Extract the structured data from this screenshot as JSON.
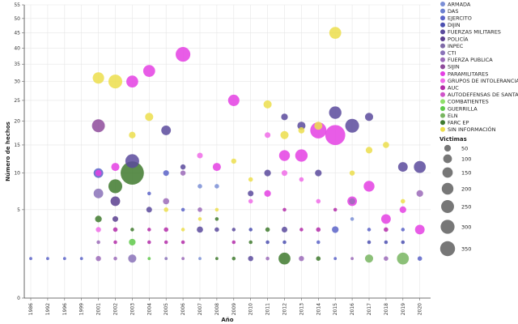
{
  "chart_data": {
    "type": "scatter",
    "xlabel": "Año",
    "ylabel": "Número de hechos",
    "x_categories": [
      "1986",
      "1992",
      "1996",
      "1999",
      "2001",
      "2002",
      "2003",
      "2004",
      "2005",
      "2006",
      "2007",
      "2008",
      "2009",
      "2010",
      "2011",
      "2012",
      "2013",
      "2014",
      "2015",
      "2016",
      "2017",
      "2018",
      "2019",
      "2020"
    ],
    "y_ticks": [
      0,
      5,
      10,
      15,
      20,
      25,
      30,
      35,
      40,
      45,
      50,
      55
    ],
    "ylim": [
      0,
      55
    ],
    "y_scale": "sqrt",
    "grid": true,
    "legend_position": "right",
    "series": [
      {
        "name": "ARMADA",
        "color": "#7b8fd6"
      },
      {
        "name": "DAS",
        "color": "#6b7fd0"
      },
      {
        "name": "EJERCITO",
        "color": "#5a63c8"
      },
      {
        "name": "DIJIN",
        "color": "#4b4fb0"
      },
      {
        "name": "FUERZAS MILITARES",
        "color": "#5a4a9c"
      },
      {
        "name": "POLICÍA",
        "color": "#5b3f8f"
      },
      {
        "name": "INPEC",
        "color": "#7f6aa8"
      },
      {
        "name": "CTI",
        "color": "#8a72b8"
      },
      {
        "name": "FUERZA PUBLICA",
        "color": "#9b6ab8"
      },
      {
        "name": "SIJIN",
        "color": "#8e4b9b"
      },
      {
        "name": "PARAMILITARES",
        "color": "#e43fe3"
      },
      {
        "name": "GRUPOS DE INTOLERANCIA",
        "color": "#f06ce8"
      },
      {
        "name": "AUC",
        "color": "#b32ca8"
      },
      {
        "name": "AUTODEFENSAS DE SANTANDER",
        "color": "#cf55c9"
      },
      {
        "name": "COMBATIENTES",
        "color": "#8fe06a"
      },
      {
        "name": "GUERRILLA",
        "color": "#5fc94a"
      },
      {
        "name": "ELN",
        "color": "#78b560"
      },
      {
        "name": "FARC EP",
        "color": "#3f7a2e"
      },
      {
        "name": "SIN INFORMACIÓN",
        "color": "#ecde4c"
      }
    ],
    "size_legend": {
      "title": "Victimas",
      "values": [
        50,
        100,
        150,
        200,
        250,
        300,
        350
      ]
    },
    "points": [
      {
        "x": "1986",
        "y": 1,
        "s": 1,
        "series": "EJERCITO"
      },
      {
        "x": "1992",
        "y": 1,
        "s": 1,
        "series": "EJERCITO"
      },
      {
        "x": "1996",
        "y": 1,
        "s": 1,
        "series": "EJERCITO"
      },
      {
        "x": "1999",
        "y": 1,
        "s": 1,
        "series": "EJERCITO"
      },
      {
        "x": "2001",
        "y": 31,
        "s": 45,
        "series": "SIN INFORMACIÓN"
      },
      {
        "x": "2001",
        "y": 19,
        "s": 60,
        "series": "SIJIN"
      },
      {
        "x": "2001",
        "y": 10,
        "s": 30,
        "series": "EJERCITO"
      },
      {
        "x": "2001",
        "y": 10,
        "s": 10,
        "series": "PARAMILITARES"
      },
      {
        "x": "2001",
        "y": 7,
        "s": 30,
        "series": "CTI"
      },
      {
        "x": "2001",
        "y": 4,
        "s": 12,
        "series": "FARC EP"
      },
      {
        "x": "2001",
        "y": 3,
        "s": 6,
        "series": "GRUPOS DE INTOLERANCIA"
      },
      {
        "x": "2001",
        "y": 2,
        "s": 2,
        "series": "FUERZA PUBLICA"
      },
      {
        "x": "2001",
        "y": 1,
        "s": 6,
        "series": "FUERZA PUBLICA"
      },
      {
        "x": "2002",
        "y": 30,
        "s": 70,
        "series": "SIN INFORMACIÓN"
      },
      {
        "x": "2002",
        "y": 11,
        "s": 20,
        "series": "PARAMILITARES"
      },
      {
        "x": "2002",
        "y": 8,
        "s": 70,
        "series": "FARC EP"
      },
      {
        "x": "2002",
        "y": 6,
        "s": 30,
        "series": "POLICÍA"
      },
      {
        "x": "2002",
        "y": 4,
        "s": 8,
        "series": "POLICÍA"
      },
      {
        "x": "2002",
        "y": 3,
        "s": 4,
        "series": "AUC"
      },
      {
        "x": "2002",
        "y": 2,
        "s": 2,
        "series": "AUC"
      },
      {
        "x": "2002",
        "y": 1,
        "s": 2,
        "series": "FUERZA PUBLICA"
      },
      {
        "x": "2003",
        "y": 30,
        "s": 50,
        "series": "PARAMILITARES"
      },
      {
        "x": "2003",
        "y": 17,
        "s": 12,
        "series": "SIN INFORMACIÓN"
      },
      {
        "x": "2003",
        "y": 12,
        "s": 70,
        "series": "FUERZAS MILITARES"
      },
      {
        "x": "2003",
        "y": 10,
        "s": 220,
        "series": "FARC EP"
      },
      {
        "x": "2003",
        "y": 3,
        "s": 2,
        "series": "FARC EP"
      },
      {
        "x": "2003",
        "y": 2,
        "s": 12,
        "series": "GUERRILLA"
      },
      {
        "x": "2003",
        "y": 1,
        "s": 20,
        "series": "CTI"
      },
      {
        "x": "2004",
        "y": 33,
        "s": 50,
        "series": "PARAMILITARES"
      },
      {
        "x": "2004",
        "y": 21,
        "s": 20,
        "series": "SIN INFORMACIÓN"
      },
      {
        "x": "2004",
        "y": 7,
        "s": 2,
        "series": "EJERCITO"
      },
      {
        "x": "2004",
        "y": 5,
        "s": 8,
        "series": "FUERZAS MILITARES"
      },
      {
        "x": "2004",
        "y": 3,
        "s": 2,
        "series": "AUC"
      },
      {
        "x": "2004",
        "y": 2,
        "s": 2,
        "series": "AUC"
      },
      {
        "x": "2004",
        "y": 1,
        "s": 1,
        "series": "GUERRILLA"
      },
      {
        "x": "2005",
        "y": 18,
        "s": 30,
        "series": "FUERZAS MILITARES"
      },
      {
        "x": "2005",
        "y": 10,
        "s": 8,
        "series": "EJERCITO"
      },
      {
        "x": "2005",
        "y": 6,
        "s": 10,
        "series": "FUERZA PUBLICA"
      },
      {
        "x": "2005",
        "y": 5,
        "s": 4,
        "series": "SIN INFORMACIÓN"
      },
      {
        "x": "2005",
        "y": 3,
        "s": 4,
        "series": "AUC"
      },
      {
        "x": "2005",
        "y": 2,
        "s": 2,
        "series": "AUC"
      },
      {
        "x": "2005",
        "y": 1,
        "s": 1,
        "series": "CTI"
      },
      {
        "x": "2006",
        "y": 38,
        "s": 80,
        "series": "PARAMILITARES"
      },
      {
        "x": "2006",
        "y": 11,
        "s": 6,
        "series": "FUERZAS MILITARES"
      },
      {
        "x": "2006",
        "y": 10,
        "s": 6,
        "series": "FUERZA PUBLICA"
      },
      {
        "x": "2006",
        "y": 5,
        "s": 2,
        "series": "EJERCITO"
      },
      {
        "x": "2006",
        "y": 3,
        "s": 2,
        "series": "SIN INFORMACIÓN"
      },
      {
        "x": "2006",
        "y": 2,
        "s": 2,
        "series": "AUC"
      },
      {
        "x": "2006",
        "y": 1,
        "s": 1,
        "series": "FUERZA PUBLICA"
      },
      {
        "x": "2007",
        "y": 13,
        "s": 8,
        "series": "GRUPOS DE INTOLERANCIA"
      },
      {
        "x": "2007",
        "y": 8,
        "s": 4,
        "series": "ARMADA"
      },
      {
        "x": "2007",
        "y": 5,
        "s": 4,
        "series": "FUERZA PUBLICA"
      },
      {
        "x": "2007",
        "y": 4,
        "s": 2,
        "series": "SIN INFORMACIÓN"
      },
      {
        "x": "2007",
        "y": 3,
        "s": 10,
        "series": "FUERZAS MILITARES"
      },
      {
        "x": "2007",
        "y": 1,
        "s": 1,
        "series": "ARMADA"
      },
      {
        "x": "2008",
        "y": 11,
        "s": 20,
        "series": "PARAMILITARES"
      },
      {
        "x": "2008",
        "y": 8,
        "s": 4,
        "series": "ARMADA"
      },
      {
        "x": "2008",
        "y": 5,
        "s": 2,
        "series": "SIN INFORMACIÓN"
      },
      {
        "x": "2008",
        "y": 4,
        "s": 2,
        "series": "FARC EP"
      },
      {
        "x": "2008",
        "y": 3,
        "s": 4,
        "series": "FUERZAS MILITARES"
      },
      {
        "x": "2008",
        "y": 1,
        "s": 1,
        "series": "FARC EP"
      },
      {
        "x": "2009",
        "y": 25,
        "s": 45,
        "series": "PARAMILITARES"
      },
      {
        "x": "2009",
        "y": 12,
        "s": 6,
        "series": "SIN INFORMACIÓN"
      },
      {
        "x": "2009",
        "y": 3,
        "s": 2,
        "series": "FUERZAS MILITARES"
      },
      {
        "x": "2009",
        "y": 2,
        "s": 2,
        "series": "AUC"
      },
      {
        "x": "2009",
        "y": 1,
        "s": 2,
        "series": "FARC EP"
      },
      {
        "x": "2010",
        "y": 9,
        "s": 4,
        "series": "SIN INFORMACIÓN"
      },
      {
        "x": "2010",
        "y": 7,
        "s": 8,
        "series": "FUERZAS MILITARES"
      },
      {
        "x": "2010",
        "y": 6,
        "s": 4,
        "series": "GRUPOS DE INTOLERANCIA"
      },
      {
        "x": "2010",
        "y": 3,
        "s": 2,
        "series": "DIJIN"
      },
      {
        "x": "2010",
        "y": 2,
        "s": 2,
        "series": "FARC EP"
      },
      {
        "x": "2010",
        "y": 1,
        "s": 6,
        "series": "FUERZAS MILITARES"
      },
      {
        "x": "2011",
        "y": 24,
        "s": 20,
        "series": "SIN INFORMACIÓN"
      },
      {
        "x": "2011",
        "y": 17,
        "s": 8,
        "series": "GRUPOS DE INTOLERANCIA"
      },
      {
        "x": "2011",
        "y": 10,
        "s": 12,
        "series": "FUERZAS MILITARES"
      },
      {
        "x": "2011",
        "y": 7,
        "s": 12,
        "series": "PARAMILITARES"
      },
      {
        "x": "2011",
        "y": 3,
        "s": 4,
        "series": "FARC EP"
      },
      {
        "x": "2011",
        "y": 2,
        "s": 2,
        "series": "DIJIN"
      },
      {
        "x": "2011",
        "y": 1,
        "s": 2,
        "series": "FUERZA PUBLICA"
      },
      {
        "x": "2012",
        "y": 21,
        "s": 12,
        "series": "FUERZAS MILITARES"
      },
      {
        "x": "2012",
        "y": 17,
        "s": 20,
        "series": "SIN INFORMACIÓN"
      },
      {
        "x": "2012",
        "y": 13,
        "s": 40,
        "series": "PARAMILITARES"
      },
      {
        "x": "2012",
        "y": 10,
        "s": 8,
        "series": "GRUPOS DE INTOLERANCIA"
      },
      {
        "x": "2012",
        "y": 5,
        "s": 2,
        "series": "AUC"
      },
      {
        "x": "2012",
        "y": 3,
        "s": 8,
        "series": "FUERZAS MILITARES"
      },
      {
        "x": "2012",
        "y": 2,
        "s": 2,
        "series": "DIJIN"
      },
      {
        "x": "2012",
        "y": 1,
        "s": 50,
        "series": "FARC EP"
      },
      {
        "x": "2013",
        "y": 19,
        "s": 20,
        "series": "FUERZAS MILITARES"
      },
      {
        "x": "2013",
        "y": 18,
        "s": 10,
        "series": "SIN INFORMACIÓN"
      },
      {
        "x": "2013",
        "y": 13,
        "s": 55,
        "series": "PARAMILITARES"
      },
      {
        "x": "2013",
        "y": 9,
        "s": 4,
        "series": "GRUPOS DE INTOLERANCIA"
      },
      {
        "x": "2013",
        "y": 3,
        "s": 2,
        "series": "AUC"
      },
      {
        "x": "2013",
        "y": 1,
        "s": 6,
        "series": "FUERZA PUBLICA"
      },
      {
        "x": "2014",
        "y": 19,
        "s": 20,
        "series": "SIN INFORMACIÓN"
      },
      {
        "x": "2014",
        "y": 18,
        "s": 100,
        "series": "PARAMILITARES"
      },
      {
        "x": "2014",
        "y": 10,
        "s": 12,
        "series": "FUERZAS MILITARES"
      },
      {
        "x": "2014",
        "y": 6,
        "s": 4,
        "series": "GRUPOS DE INTOLERANCIA"
      },
      {
        "x": "2014",
        "y": 3,
        "s": 4,
        "series": "AUC"
      },
      {
        "x": "2014",
        "y": 2,
        "s": 2,
        "series": "EJERCITO"
      },
      {
        "x": "2014",
        "y": 1,
        "s": 4,
        "series": "FARC EP"
      },
      {
        "x": "2015",
        "y": 45,
        "s": 50,
        "series": "SIN INFORMACIÓN"
      },
      {
        "x": "2015",
        "y": 22,
        "s": 55,
        "series": "FUERZAS MILITARES"
      },
      {
        "x": "2015",
        "y": 17,
        "s": 160,
        "series": "PARAMILITARES"
      },
      {
        "x": "2015",
        "y": 5,
        "s": 2,
        "series": "AUC"
      },
      {
        "x": "2015",
        "y": 3,
        "s": 12,
        "series": "EJERCITO"
      },
      {
        "x": "2015",
        "y": 1,
        "s": 1,
        "series": "EJERCITO"
      },
      {
        "x": "2016",
        "y": 19,
        "s": 70,
        "series": "FUERZAS MILITARES"
      },
      {
        "x": "2016",
        "y": 10,
        "s": 6,
        "series": "SIN INFORMACIÓN"
      },
      {
        "x": "2016",
        "y": 6,
        "s": 30,
        "series": "PARAMILITARES"
      },
      {
        "x": "2016",
        "y": 6,
        "s": 10,
        "series": "FUERZA PUBLICA"
      },
      {
        "x": "2016",
        "y": 4,
        "s": 2,
        "series": "ARMADA"
      },
      {
        "x": "2016",
        "y": 1,
        "s": 1,
        "series": "FUERZA PUBLICA"
      },
      {
        "x": "2017",
        "y": 21,
        "s": 20,
        "series": "FUERZAS MILITARES"
      },
      {
        "x": "2017",
        "y": 14,
        "s": 12,
        "series": "SIN INFORMACIÓN"
      },
      {
        "x": "2017",
        "y": 8,
        "s": 40,
        "series": "PARAMILITARES"
      },
      {
        "x": "2017",
        "y": 3,
        "s": 2,
        "series": "EJERCITO"
      },
      {
        "x": "2017",
        "y": 2,
        "s": 2,
        "series": "DIJIN"
      },
      {
        "x": "2017",
        "y": 1,
        "s": 20,
        "series": "ELN"
      },
      {
        "x": "2018",
        "y": 15,
        "s": 10,
        "series": "SIN INFORMACIÓN"
      },
      {
        "x": "2018",
        "y": 4,
        "s": 30,
        "series": "PARAMILITARES"
      },
      {
        "x": "2018",
        "y": 3,
        "s": 4,
        "series": "AUC"
      },
      {
        "x": "2018",
        "y": 2,
        "s": 2,
        "series": "DIJIN"
      },
      {
        "x": "2018",
        "y": 1,
        "s": 4,
        "series": "FUERZA PUBLICA"
      },
      {
        "x": "2019",
        "y": 11,
        "s": 30,
        "series": "FUERZAS MILITARES"
      },
      {
        "x": "2019",
        "y": 6,
        "s": 4,
        "series": "SIN INFORMACIÓN"
      },
      {
        "x": "2019",
        "y": 5,
        "s": 12,
        "series": "PARAMILITARES"
      },
      {
        "x": "2019",
        "y": 3,
        "s": 2,
        "series": "EJERCITO"
      },
      {
        "x": "2019",
        "y": 2,
        "s": 2,
        "series": "DIJIN"
      },
      {
        "x": "2019",
        "y": 1,
        "s": 50,
        "series": "ELN"
      },
      {
        "x": "2020",
        "y": 11,
        "s": 50,
        "series": "FUERZAS MILITARES"
      },
      {
        "x": "2020",
        "y": 7,
        "s": 12,
        "series": "FUERZA PUBLICA"
      },
      {
        "x": "2020",
        "y": 3,
        "s": 30,
        "series": "PARAMILITARES"
      },
      {
        "x": "2020",
        "y": 1,
        "s": 4,
        "series": "EJERCITO"
      }
    ]
  }
}
